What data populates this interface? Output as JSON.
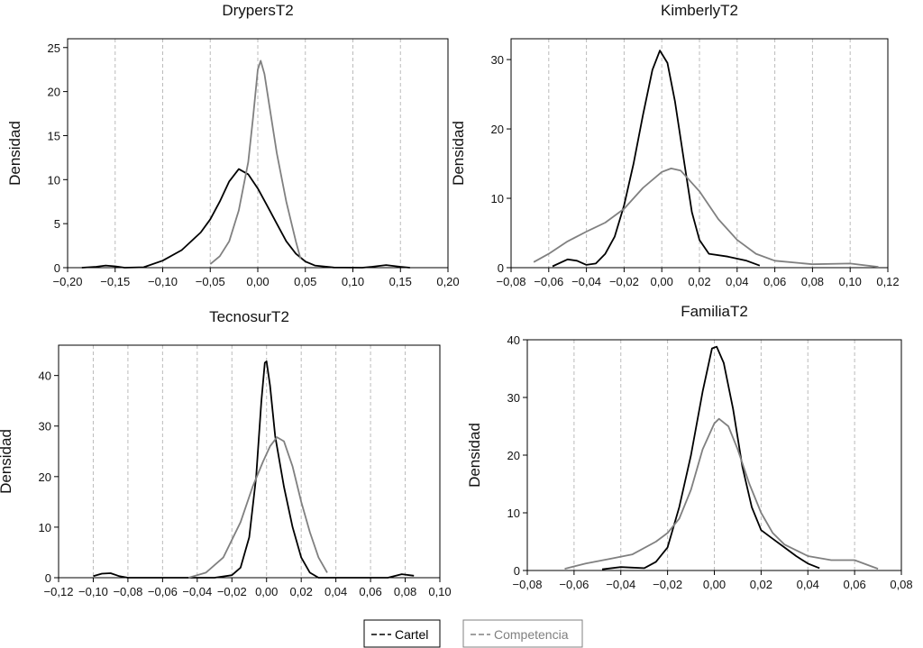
{
  "chart_data": [
    {
      "type": "line",
      "title": "DrypersT2",
      "xlabel": "",
      "ylabel": "Densidad",
      "xlim": [
        -0.2,
        0.2
      ],
      "ylim": [
        0,
        26
      ],
      "x_ticks": [
        -0.2,
        -0.15,
        -0.1,
        -0.05,
        0.0,
        0.05,
        0.1,
        0.15,
        0.2
      ],
      "x_tick_labels": [
        "−0,20",
        "−0,15",
        "−0,10",
        "−0,05",
        "0,00",
        "0,05",
        "0,10",
        "0,15",
        "0,20"
      ],
      "y_ticks": [
        0,
        5,
        10,
        15,
        20,
        25
      ],
      "y_tick_labels": [
        "0",
        "5",
        "10",
        "15",
        "20",
        "25"
      ],
      "grid_x": true,
      "series": [
        {
          "name": "Cartel",
          "color": "#000000",
          "points": [
            [
              -0.185,
              0
            ],
            [
              -0.17,
              0.1
            ],
            [
              -0.16,
              0.25
            ],
            [
              -0.15,
              0.15
            ],
            [
              -0.14,
              0
            ],
            [
              -0.12,
              0.05
            ],
            [
              -0.1,
              0.8
            ],
            [
              -0.08,
              2.0
            ],
            [
              -0.06,
              4.0
            ],
            [
              -0.05,
              5.5
            ],
            [
              -0.04,
              7.5
            ],
            [
              -0.03,
              9.8
            ],
            [
              -0.02,
              11.2
            ],
            [
              -0.01,
              10.6
            ],
            [
              0.0,
              9.0
            ],
            [
              0.01,
              7.0
            ],
            [
              0.02,
              5.0
            ],
            [
              0.03,
              3.0
            ],
            [
              0.04,
              1.6
            ],
            [
              0.05,
              0.7
            ],
            [
              0.06,
              0.25
            ],
            [
              0.08,
              0.02
            ],
            [
              0.11,
              0
            ],
            [
              0.12,
              0.1
            ],
            [
              0.135,
              0.3
            ],
            [
              0.15,
              0.1
            ],
            [
              0.16,
              0
            ]
          ]
        },
        {
          "name": "Competencia",
          "color": "#808080",
          "points": [
            [
              -0.05,
              0.4
            ],
            [
              -0.04,
              1.3
            ],
            [
              -0.03,
              3.0
            ],
            [
              -0.02,
              6.5
            ],
            [
              -0.01,
              12.0
            ],
            [
              -0.005,
              17.0
            ],
            [
              0.0,
              22.5
            ],
            [
              0.003,
              23.5
            ],
            [
              0.007,
              22.0
            ],
            [
              0.012,
              18.5
            ],
            [
              0.02,
              13.0
            ],
            [
              0.03,
              7.5
            ],
            [
              0.04,
              3.0
            ],
            [
              0.045,
              1.0
            ]
          ]
        }
      ]
    },
    {
      "type": "line",
      "title": "KimberlyT2",
      "xlabel": "",
      "ylabel": "Densidad",
      "xlim": [
        -0.08,
        0.12
      ],
      "ylim": [
        0,
        33
      ],
      "x_ticks": [
        -0.08,
        -0.06,
        -0.04,
        -0.02,
        0.0,
        0.02,
        0.04,
        0.06,
        0.08,
        0.1,
        0.12
      ],
      "x_tick_labels": [
        "−0,08",
        "−0,06",
        "−0,04",
        "−0,02",
        "0,00",
        "0,02",
        "0,04",
        "0,06",
        "0,08",
        "0,10",
        "0,12"
      ],
      "y_ticks": [
        0,
        10,
        20,
        30
      ],
      "y_tick_labels": [
        "0",
        "10",
        "20",
        "30"
      ],
      "grid_x": true,
      "series": [
        {
          "name": "Cartel",
          "color": "#000000",
          "points": [
            [
              -0.058,
              0.2
            ],
            [
              -0.05,
              1.2
            ],
            [
              -0.045,
              1.0
            ],
            [
              -0.04,
              0.4
            ],
            [
              -0.035,
              0.6
            ],
            [
              -0.03,
              2.0
            ],
            [
              -0.025,
              4.5
            ],
            [
              -0.02,
              9.0
            ],
            [
              -0.015,
              15.0
            ],
            [
              -0.01,
              22.0
            ],
            [
              -0.005,
              28.5
            ],
            [
              -0.001,
              31.3
            ],
            [
              0.003,
              29.5
            ],
            [
              0.007,
              24.0
            ],
            [
              0.012,
              15.0
            ],
            [
              0.016,
              8.0
            ],
            [
              0.02,
              4.0
            ],
            [
              0.025,
              2.0
            ],
            [
              0.035,
              1.6
            ],
            [
              0.045,
              1.0
            ],
            [
              0.052,
              0.3
            ]
          ]
        },
        {
          "name": "Competencia",
          "color": "#808080",
          "points": [
            [
              -0.068,
              0.8
            ],
            [
              -0.06,
              2.0
            ],
            [
              -0.05,
              3.8
            ],
            [
              -0.04,
              5.2
            ],
            [
              -0.03,
              6.5
            ],
            [
              -0.02,
              8.5
            ],
            [
              -0.01,
              11.5
            ],
            [
              0.0,
              13.8
            ],
            [
              0.005,
              14.3
            ],
            [
              0.01,
              14.0
            ],
            [
              0.02,
              11.0
            ],
            [
              0.03,
              7.0
            ],
            [
              0.04,
              4.0
            ],
            [
              0.05,
              2.0
            ],
            [
              0.06,
              1.0
            ],
            [
              0.08,
              0.5
            ],
            [
              0.1,
              0.6
            ],
            [
              0.115,
              0.1
            ]
          ]
        }
      ]
    },
    {
      "type": "line",
      "title": "TecnosurT2",
      "xlabel": "",
      "ylabel": "Densidad",
      "xlim": [
        -0.12,
        0.1
      ],
      "ylim": [
        0,
        46
      ],
      "x_ticks": [
        -0.12,
        -0.1,
        -0.08,
        -0.06,
        -0.04,
        -0.02,
        0.0,
        0.02,
        0.04,
        0.06,
        0.08,
        0.1
      ],
      "x_tick_labels": [
        "−0,12",
        "−0,10",
        "−0,08",
        "−0,06",
        "−0,04",
        "−0,02",
        "0,00",
        "0,02",
        "0,04",
        "0,06",
        "0,08",
        "0,10"
      ],
      "y_ticks": [
        0,
        10,
        20,
        30,
        40
      ],
      "y_tick_labels": [
        "0",
        "10",
        "20",
        "30",
        "40"
      ],
      "grid_x": true,
      "series": [
        {
          "name": "Cartel",
          "color": "#000000",
          "points": [
            [
              -0.1,
              0.3
            ],
            [
              -0.095,
              0.8
            ],
            [
              -0.09,
              0.9
            ],
            [
              -0.085,
              0.3
            ],
            [
              -0.08,
              0
            ],
            [
              -0.03,
              0
            ],
            [
              -0.02,
              0.5
            ],
            [
              -0.015,
              2.0
            ],
            [
              -0.01,
              8.0
            ],
            [
              -0.006,
              20.0
            ],
            [
              -0.003,
              35.0
            ],
            [
              -0.001,
              42.5
            ],
            [
              0.0,
              42.8
            ],
            [
              0.002,
              38.0
            ],
            [
              0.005,
              28.0
            ],
            [
              0.01,
              18.0
            ],
            [
              0.015,
              10.0
            ],
            [
              0.02,
              4.0
            ],
            [
              0.025,
              1.0
            ],
            [
              0.03,
              0
            ],
            [
              0.07,
              0
            ],
            [
              0.078,
              0.7
            ],
            [
              0.085,
              0.4
            ]
          ]
        },
        {
          "name": "Competencia",
          "color": "#808080",
          "points": [
            [
              -0.045,
              0
            ],
            [
              -0.035,
              1.0
            ],
            [
              -0.025,
              4.0
            ],
            [
              -0.015,
              11.0
            ],
            [
              -0.008,
              18.0
            ],
            [
              -0.002,
              23.0
            ],
            [
              0.002,
              26.0
            ],
            [
              0.006,
              27.8
            ],
            [
              0.01,
              27.0
            ],
            [
              0.015,
              22.0
            ],
            [
              0.02,
              15.0
            ],
            [
              0.025,
              9.0
            ],
            [
              0.03,
              4.0
            ],
            [
              0.035,
              1.0
            ]
          ]
        }
      ]
    },
    {
      "type": "line",
      "title": "FamiliaT2",
      "xlabel": "",
      "ylabel": "Densidad",
      "xlim": [
        -0.08,
        0.08
      ],
      "ylim": [
        0,
        40
      ],
      "x_ticks": [
        -0.08,
        -0.06,
        -0.04,
        -0.02,
        0.0,
        0.02,
        0.04,
        0.06,
        0.08
      ],
      "x_tick_labels": [
        "−0,08",
        "−0,06",
        "−0,04",
        "−0,02",
        "0,00",
        "0,02",
        "0,04",
        "0,06",
        "0,08"
      ],
      "y_ticks": [
        0,
        10,
        20,
        30,
        40
      ],
      "y_tick_labels": [
        "0",
        "10",
        "20",
        "30",
        "40"
      ],
      "grid_x": true,
      "series": [
        {
          "name": "Cartel",
          "color": "#000000",
          "points": [
            [
              -0.048,
              0.2
            ],
            [
              -0.04,
              0.6
            ],
            [
              -0.035,
              0.5
            ],
            [
              -0.03,
              0.4
            ],
            [
              -0.025,
              1.5
            ],
            [
              -0.02,
              4.0
            ],
            [
              -0.015,
              11.0
            ],
            [
              -0.01,
              20.0
            ],
            [
              -0.005,
              31.0
            ],
            [
              -0.001,
              38.5
            ],
            [
              0.001,
              38.8
            ],
            [
              0.004,
              36.0
            ],
            [
              0.008,
              28.0
            ],
            [
              0.012,
              18.0
            ],
            [
              0.016,
              11.0
            ],
            [
              0.02,
              7.0
            ],
            [
              0.025,
              5.5
            ],
            [
              0.03,
              4.0
            ],
            [
              0.035,
              2.5
            ],
            [
              0.04,
              1.2
            ],
            [
              0.045,
              0.4
            ]
          ]
        },
        {
          "name": "Competencia",
          "color": "#808080",
          "points": [
            [
              -0.064,
              0.3
            ],
            [
              -0.055,
              1.2
            ],
            [
              -0.045,
              2.0
            ],
            [
              -0.035,
              2.8
            ],
            [
              -0.025,
              5.0
            ],
            [
              -0.02,
              6.5
            ],
            [
              -0.015,
              9.0
            ],
            [
              -0.01,
              14.0
            ],
            [
              -0.005,
              21.0
            ],
            [
              0.0,
              25.5
            ],
            [
              0.002,
              26.3
            ],
            [
              0.006,
              25.0
            ],
            [
              0.01,
              21.0
            ],
            [
              0.015,
              15.0
            ],
            [
              0.02,
              10.0
            ],
            [
              0.025,
              6.5
            ],
            [
              0.03,
              4.5
            ],
            [
              0.04,
              2.5
            ],
            [
              0.05,
              1.8
            ],
            [
              0.06,
              1.8
            ],
            [
              0.07,
              0.3
            ]
          ]
        }
      ]
    }
  ],
  "legend": {
    "placement": "bottom-center",
    "items": [
      {
        "label": "Cartel",
        "color": "#000000"
      },
      {
        "label": "Competencia",
        "color": "#808080"
      }
    ]
  }
}
